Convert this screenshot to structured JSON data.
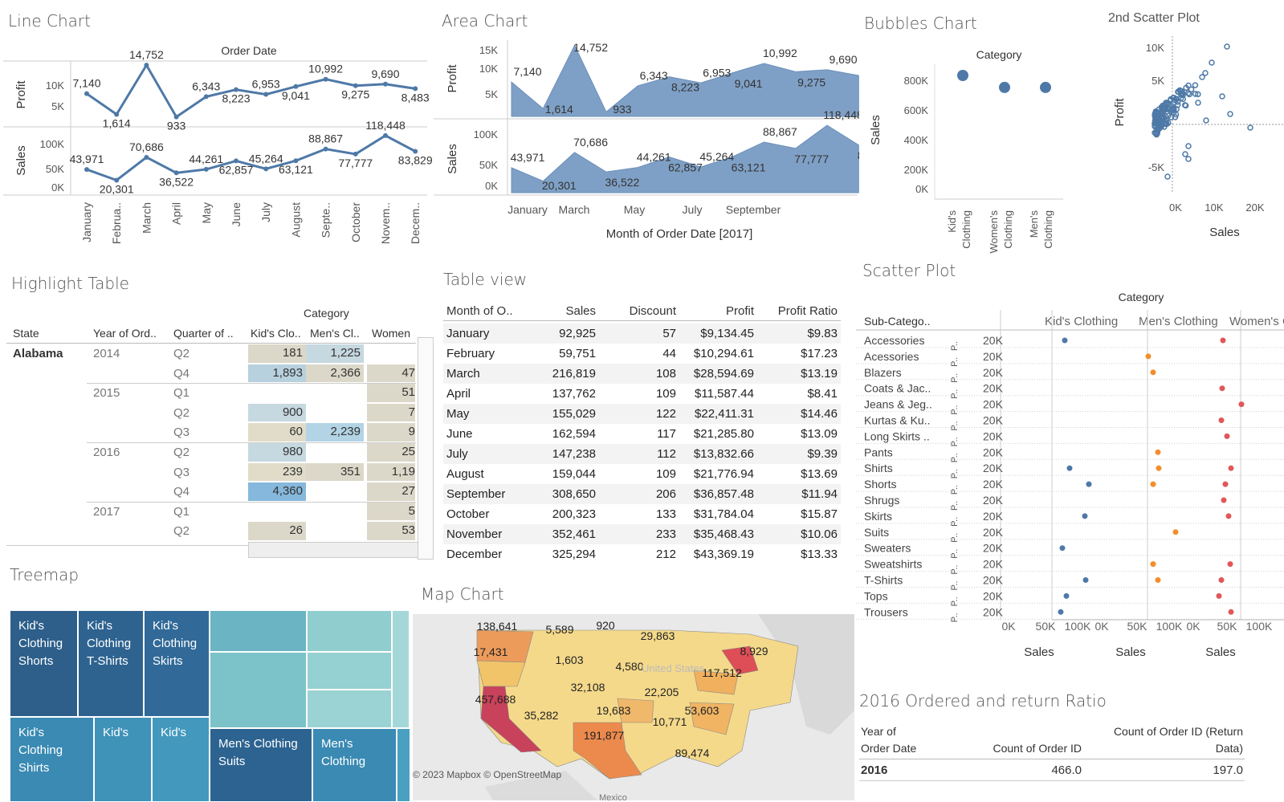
{
  "titles": {
    "line": "Line Chart",
    "area": "Area Chart",
    "bubbles": "Bubbles Chart",
    "scatter2": "2nd Scatter Plot",
    "highlight": "Highlight Table",
    "table": "Table view",
    "scatter": "Scatter Plot",
    "treemap": "Treemap",
    "map": "Map Chart",
    "ratio": "2016 Ordered and return Ratio"
  },
  "colors": {
    "accent": "#4e79a7",
    "area_fill": "#7fa0c6",
    "blue_dot": "#4e79a7",
    "orange_dot": "#f28e2b",
    "red_dot": "#e15759"
  },
  "line": {
    "header": "Order Date",
    "profit_label": "Profit",
    "sales_label": "Sales",
    "profit_ticks": [
      "10K",
      "5K"
    ],
    "sales_ticks": [
      "100K",
      "50K",
      "0K"
    ],
    "months": [
      "January",
      "Februa..",
      "March",
      "April",
      "May",
      "June",
      "July",
      "August",
      "Septe..",
      "October",
      "Novem..",
      "Decem.."
    ]
  },
  "area": {
    "profit_label": "Profit",
    "sales_label": "Sales",
    "profit_ticks": [
      "15K",
      "10K",
      "5K"
    ],
    "sales_ticks": [
      "100K",
      "50K",
      "0K"
    ],
    "xticks": [
      "January",
      "March",
      "May",
      "July",
      "September"
    ],
    "xtitle": "Month of Order Date [2017]"
  },
  "chart_data": [
    {
      "type": "line",
      "id": "line-profit",
      "xlabel": "Order Date",
      "ylabel": "Profit",
      "categories": [
        "January",
        "February",
        "March",
        "April",
        "May",
        "June",
        "July",
        "August",
        "September",
        "October",
        "November",
        "December"
      ],
      "values": [
        7140,
        1614,
        14752,
        933,
        6343,
        8223,
        6953,
        9041,
        10992,
        9275,
        9690,
        8483
      ],
      "labels": [
        "7,140",
        "1,614",
        "14,752",
        "933",
        "6,343",
        "8,223",
        "6,953",
        "9,041",
        "10,992",
        "9,275",
        "9,690",
        "8,483"
      ]
    },
    {
      "type": "line",
      "id": "line-sales",
      "ylabel": "Sales",
      "categories": [
        "January",
        "February",
        "March",
        "April",
        "May",
        "June",
        "July",
        "August",
        "September",
        "October",
        "November",
        "December"
      ],
      "values": [
        43971,
        20301,
        70686,
        36522,
        44261,
        62857,
        45264,
        63121,
        88867,
        77777,
        118448,
        83829
      ],
      "labels": [
        "43,971",
        "20,301",
        "70,686",
        "36,522",
        "44,261",
        "62,857",
        "45,264",
        "63,121",
        "88,867",
        "77,777",
        "118,448",
        "83,829"
      ]
    },
    {
      "type": "area",
      "id": "area-profit",
      "xlabel": "Month of Order Date [2017]",
      "ylabel": "Profit",
      "values": [
        7140,
        1614,
        14752,
        933,
        6343,
        8223,
        6953,
        9041,
        10992,
        9275,
        9690,
        8483
      ]
    },
    {
      "type": "area",
      "id": "area-sales",
      "ylabel": "Sales",
      "values": [
        43971,
        20301,
        70686,
        36522,
        44261,
        62857,
        45264,
        63121,
        88867,
        77777,
        118448,
        83829
      ]
    },
    {
      "type": "scatter",
      "id": "bubbles",
      "title": "Bubbles Chart",
      "xlabel": "Category",
      "ylabel": "Sales",
      "categories": [
        "Kid's Clothing",
        "Women's Clothing",
        "Men's Clothing"
      ],
      "values": [
        825000,
        745000,
        745000
      ],
      "ylim": [
        0,
        900000
      ],
      "yticks": [
        "800K",
        "600K",
        "400K",
        "200K",
        "0K"
      ]
    },
    {
      "type": "scatter",
      "id": "scatter2",
      "title": "2nd Scatter Plot",
      "xlabel": "Sales",
      "ylabel": "Profit",
      "xticks": [
        "0K",
        "10K",
        "20K"
      ],
      "yticks": [
        "10K",
        "5K",
        "0K",
        "-5K"
      ]
    }
  ],
  "bubbles": {
    "header": "Category",
    "ylabel": "Sales",
    "cats": [
      "Kid's",
      "Clothing",
      "Women's",
      "Clothing",
      "Men's",
      "Clothing"
    ]
  },
  "scatter2": {
    "xlabel": "Sales",
    "ylabel": "Profit",
    "xticks": [
      "0K",
      "10K",
      "20K"
    ],
    "yticks": [
      "10K",
      "5K",
      "0K",
      "-5K"
    ]
  },
  "highlight": {
    "category": "Category",
    "cols": [
      "State",
      "Year of Ord..",
      "Quarter of ..",
      "Kid's Clo..",
      "Men's Cl..",
      "Women"
    ],
    "state": "Alabama",
    "years": [
      "2014",
      "2015",
      "2016",
      "2017"
    ],
    "quarters": [
      "Q2",
      "Q4",
      "Q1",
      "Q2",
      "Q3",
      "Q2",
      "Q3",
      "Q4",
      "Q1",
      "Q2"
    ],
    "kids": [
      "181",
      "1,893",
      "",
      "900",
      "60",
      "980",
      "239",
      "4,360",
      "",
      "26"
    ],
    "mens": [
      "1,225",
      "2,366",
      "",
      "",
      "2,239",
      "",
      "351",
      "",
      "",
      ""
    ],
    "womens": [
      "",
      "47",
      "51",
      "7",
      "9",
      "25",
      "1,19",
      "27",
      "5",
      "53"
    ]
  },
  "table": {
    "headers": [
      "Month of O..",
      "Sales",
      "Discount",
      "Profit",
      "Profit Ratio"
    ],
    "rows": [
      [
        "January",
        "92,925",
        "57",
        "$9,134.45",
        "$9.83"
      ],
      [
        "February",
        "59,751",
        "44",
        "$10,294.61",
        "$17.23"
      ],
      [
        "March",
        "216,819",
        "108",
        "$28,594.69",
        "$13.19"
      ],
      [
        "April",
        "137,762",
        "109",
        "$11,587.44",
        "$8.41"
      ],
      [
        "May",
        "155,029",
        "122",
        "$22,411.31",
        "$14.46"
      ],
      [
        "June",
        "162,594",
        "117",
        "$21,285.80",
        "$13.09"
      ],
      [
        "July",
        "147,238",
        "112",
        "$13,832.66",
        "$9.39"
      ],
      [
        "August",
        "159,044",
        "109",
        "$21,776.94",
        "$13.69"
      ],
      [
        "September",
        "308,650",
        "206",
        "$36,857.48",
        "$11.94"
      ],
      [
        "October",
        "200,323",
        "133",
        "$31,784.04",
        "$15.87"
      ],
      [
        "November",
        "352,461",
        "233",
        "$35,468.43",
        "$10.06"
      ],
      [
        "December",
        "325,294",
        "212",
        "$43,369.19",
        "$13.33"
      ]
    ]
  },
  "scatter": {
    "category": "Category",
    "subcat_header": "Sub-Catego..",
    "groups": [
      "Kid's Clothing",
      "Men's Clothing",
      "Women's Cloth.."
    ],
    "xticks": [
      "0K",
      "50K",
      "100K"
    ],
    "xlabel": "Sales",
    "p": "P..",
    "value": "20K",
    "subcats": [
      "Accessories",
      "Acessories",
      "Blazers",
      "Coats & Jac..",
      "Jeans & Jeg..",
      "Kurtas & Ku..",
      "Long Skirts ..",
      "Pants",
      "Shirts",
      "Shorts",
      "Shrugs",
      "Skirts",
      "Suits",
      "Sweaters",
      "Sweatshirts",
      "T-Shirts",
      "Tops",
      "Trousers"
    ]
  },
  "treemap": {
    "cells": [
      "Kid's Clothing Shorts",
      "Kid's Clothing T-Shirts",
      "Kid's Clothing Skirts",
      "Kid's Clothing Shirts",
      "Kid's",
      "Kid's",
      "Men's Clothing Suits",
      "Men's Clothing"
    ]
  },
  "map": {
    "labels": [
      "138,641",
      "5,589",
      "920",
      "29,863",
      "17,431",
      "1,603",
      "4,580",
      "8,929",
      "117,512",
      "32,108",
      "22,205",
      "457,688",
      "35,282",
      "19,683",
      "53,603",
      "10,771",
      "191,877",
      "89,474"
    ],
    "attribution": "© 2023 Mapbox © OpenStreetMap",
    "country": "Mexico",
    "us": "United States"
  },
  "ratio": {
    "col1a": "Year of",
    "col1b": "Order Date",
    "col2": "Count of Order ID",
    "col3a": "Count of Order ID (Return",
    "col3b": "Data)",
    "year": "2016",
    "v1": "466.0",
    "v2": "197.0"
  }
}
